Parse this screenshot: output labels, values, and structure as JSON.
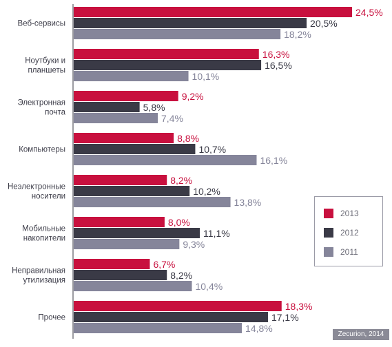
{
  "chart_data": {
    "type": "bar",
    "orientation": "horizontal",
    "value_suffix": "%",
    "decimal_separator": ",",
    "categories": [
      [
        "Веб-сервисы"
      ],
      [
        "Ноутбуки и",
        "планшеты"
      ],
      [
        "Электронная",
        "почта"
      ],
      [
        "Компьютеры"
      ],
      [
        "Неэлектронные",
        "носители"
      ],
      [
        "Мобильные",
        "накопители"
      ],
      [
        "Неправильная",
        "утилизация"
      ],
      [
        "Прочее"
      ]
    ],
    "series": [
      {
        "name": "2013",
        "color": "#c8103e",
        "values": [
          24.5,
          16.3,
          9.2,
          8.8,
          8.2,
          8.0,
          6.7,
          18.3
        ]
      },
      {
        "name": "2012",
        "color": "#3a3a46",
        "values": [
          20.5,
          16.5,
          5.8,
          10.7,
          10.2,
          11.1,
          8.2,
          17.1
        ]
      },
      {
        "name": "2011",
        "color": "#85859a",
        "values": [
          18.2,
          10.1,
          7.4,
          16.1,
          13.8,
          9.3,
          10.4,
          14.8
        ]
      }
    ],
    "xlim": [
      0,
      24.5
    ],
    "legend_position": "right"
  },
  "legend": {
    "items": [
      {
        "label": "2013",
        "color": "#c8103e"
      },
      {
        "label": "2012",
        "color": "#3a3a46"
      },
      {
        "label": "2011",
        "color": "#85859a"
      }
    ]
  },
  "credit": "Zecurion, 2014"
}
